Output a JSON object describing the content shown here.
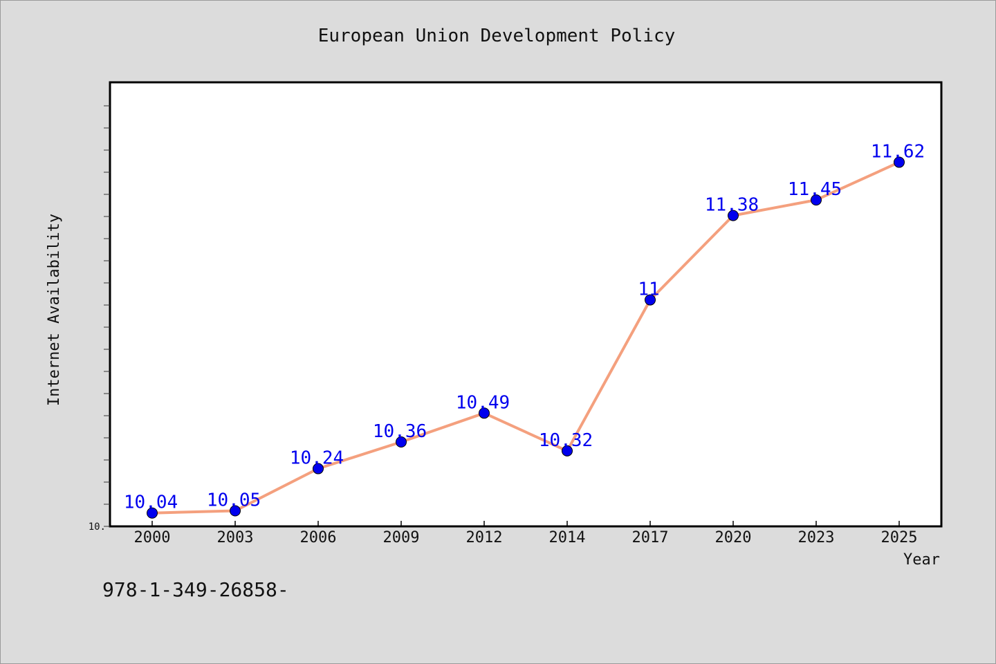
{
  "chart_data": {
    "type": "line",
    "title": "European Union Development Policy",
    "xlabel": "Year",
    "ylabel": "Internet Availability",
    "categories": [
      "2000",
      "2003",
      "2006",
      "2009",
      "2012",
      "2014",
      "2017",
      "2020",
      "2023",
      "2025"
    ],
    "series": [
      {
        "values": [
          10.04,
          10.05,
          10.24,
          10.36,
          10.49,
          10.32,
          11,
          11.38,
          11.45,
          11.62
        ]
      }
    ],
    "data_labels": [
      "10.04",
      "10.05",
      "10.24",
      "10.36",
      "10.49",
      "10.32",
      "11",
      "11.38",
      "11.45",
      "11.62"
    ],
    "ylim": [
      9.98,
      11.98
    ],
    "ytick_label": "10.",
    "grid": false,
    "line_color": "#f4a07e",
    "marker_color": "#0000ee",
    "label_color": "#0000ee"
  },
  "footnote": "978-1-349-26858-"
}
